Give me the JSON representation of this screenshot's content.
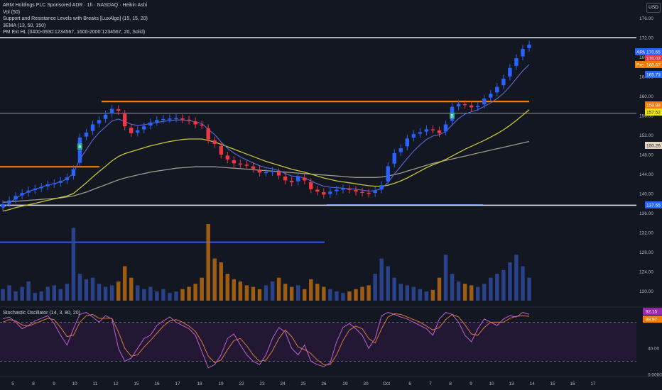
{
  "legend": {
    "title": "ARM Holdings PLC Sponsored ADR · 1h · NASDAQ · Heikin Ashi",
    "vol": "Vol (50)",
    "sr": " Support and Resistance Levels with Breaks [LuxAlgo] (15, 15, 20)",
    "ema": "3EMA (13, 50, 150)",
    "pm": "PM Ext HL (0400-0930:1234567, 1600-2000:1234567, 20, Solid)"
  },
  "currency_button": "USD",
  "oscillator_title": "Stochastic Oscillator (14, 3, 80, 20)",
  "colors": {
    "bg": "#131722",
    "up": "#2962ff",
    "down": "#f23645",
    "ema_fast": "#5b6bd6",
    "ema_mid": "#c9c43a",
    "ema_slow": "#9e9a8c",
    "resistance": "#f57c00",
    "support": "#2f4fd8",
    "pm_line": "#e0e3eb",
    "stoch_k": "#c05fd0",
    "stoch_d": "#d77a3a"
  },
  "chart_data": [
    {
      "type": "candlestick",
      "style": "Heikin Ashi",
      "interval": "1h",
      "symbol": "ARM",
      "x_ticks": [
        "5",
        "8",
        "9",
        "10",
        "11",
        "12",
        "15",
        "16",
        "17",
        "18",
        "19",
        "22",
        "23",
        "24",
        "25",
        "26",
        "29",
        "30",
        "Oct",
        "6",
        "7",
        "8",
        "9",
        "10",
        "13",
        "14",
        "15",
        "16",
        "17"
      ],
      "y_ticks": [
        176.0,
        172.0,
        168.0,
        164.0,
        160.0,
        156.0,
        152.0,
        148.0,
        144.0,
        140.0,
        136.0,
        132.0,
        128.0,
        124.0,
        120.0
      ],
      "ylim": [
        118.0,
        178.0
      ],
      "price_path": [
        137.8,
        138.6,
        139.5,
        140.1,
        140.6,
        141.0,
        141.4,
        141.9,
        142.1,
        142.6,
        143.3,
        145.0,
        151.5,
        152.5,
        154.2,
        155.1,
        156.2,
        157.4,
        157.0,
        153.8,
        152.4,
        153.0,
        153.8,
        154.6,
        155.1,
        155.3,
        155.4,
        155.5,
        155.2,
        155.0,
        154.2,
        154.0,
        151.1,
        150.2,
        148.0,
        147.0,
        146.2,
        146.0,
        145.7,
        145.1,
        144.3,
        144.4,
        144.6,
        143.7,
        142.7,
        142.3,
        143.4,
        142.7,
        140.9,
        140.4,
        139.8,
        140.4,
        140.8,
        141.0,
        140.8,
        140.4,
        140.2,
        140.0,
        140.6,
        141.7,
        145.6,
        148.3,
        149.3,
        151.3,
        152.2,
        152.6,
        153.2,
        153.1,
        152.4,
        154.2,
        157.8,
        158.4,
        158.2,
        157.7,
        158.0,
        159.5,
        160.5,
        161.9,
        163.6,
        165.8,
        167.8,
        169.7,
        170.6
      ],
      "current_price": 170.65,
      "price_tags": [
        {
          "label": "ARM",
          "value": "170.65",
          "color": "#2962ff"
        },
        {
          "label": "",
          "value": "170.02",
          "color": "#f23645"
        },
        {
          "label": "Pre",
          "value": "168.57",
          "color": "#f57c00"
        },
        {
          "label": "",
          "value": "165.73",
          "color": "#2962ff"
        },
        {
          "label": "",
          "value": "158.88",
          "color": "#f57c00"
        },
        {
          "label": "",
          "value": "157.52",
          "color": "#f5e800"
        },
        {
          "label": "",
          "value": "150.26",
          "color": "#e3d7c4"
        },
        {
          "label": "",
          "value": "137.65",
          "color": "#2962ff"
        }
      ],
      "levels": [
        {
          "name": "PM high",
          "value": 172.0,
          "color": "#e0e3eb"
        },
        {
          "name": "Resistance",
          "value": 158.9,
          "color": "#f57c00"
        },
        {
          "name": "Level",
          "value": 156.5,
          "color": "#9598a1"
        },
        {
          "name": "Resistance old",
          "value": 145.5,
          "color": "#f57c00"
        },
        {
          "name": "Support",
          "value": 137.65,
          "color": "#2962ff"
        },
        {
          "name": "PM low",
          "value": 137.6,
          "color": "#e0e3eb"
        },
        {
          "name": "Support old",
          "value": 130.0,
          "color": "#2f4fd8"
        }
      ],
      "ema": {
        "fast_13": [
          137.0,
          138.0,
          139.0,
          139.8,
          140.4,
          140.9,
          141.3,
          141.8,
          142.0,
          142.4,
          143.0,
          144.2,
          147.0,
          149.0,
          151.0,
          152.5,
          153.7,
          154.9,
          155.3,
          154.8,
          154.2,
          154.0,
          154.1,
          154.4,
          154.6,
          154.8,
          155.0,
          155.1,
          155.1,
          155.0,
          154.7,
          154.4,
          153.2,
          152.1,
          150.6,
          149.3,
          148.3,
          147.5,
          146.9,
          146.3,
          145.7,
          145.3,
          145.1,
          144.7,
          144.1,
          143.6,
          143.5,
          143.2,
          142.6,
          142.0,
          141.5,
          141.3,
          141.2,
          141.1,
          141.0,
          140.9,
          140.7,
          140.5,
          140.6,
          141.0,
          142.3,
          144.0,
          145.6,
          147.2,
          148.7,
          150.0,
          151.1,
          151.8,
          152.1,
          152.7,
          154.1,
          155.4,
          156.3,
          156.8,
          157.2,
          157.9,
          158.6,
          159.5,
          160.6,
          162.0,
          163.6,
          165.2,
          166.5
        ],
        "mid_50": [
          136.4,
          136.7,
          137.1,
          137.4,
          137.7,
          138.0,
          138.3,
          138.6,
          138.9,
          139.2,
          139.5,
          140.0,
          141.1,
          142.2,
          143.4,
          144.5,
          145.6,
          146.7,
          147.6,
          148.2,
          148.6,
          149.0,
          149.4,
          149.8,
          150.1,
          150.4,
          150.7,
          150.9,
          151.1,
          151.2,
          151.2,
          151.2,
          150.9,
          150.6,
          150.1,
          149.6,
          149.1,
          148.6,
          148.1,
          147.6,
          147.1,
          146.6,
          146.2,
          145.8,
          145.4,
          145.0,
          144.7,
          144.4,
          144.0,
          143.6,
          143.2,
          142.9,
          142.6,
          142.4,
          142.2,
          142.0,
          141.8,
          141.6,
          141.5,
          141.5,
          141.7,
          142.1,
          142.6,
          143.2,
          143.9,
          144.6,
          145.3,
          145.9,
          146.4,
          147.0,
          147.7,
          148.4,
          149.1,
          149.7,
          150.3,
          150.9,
          151.6,
          152.3,
          153.1,
          154.0,
          155.0,
          156.1,
          157.2
        ],
        "slow_150": [
          138.2,
          138.3,
          138.4,
          138.5,
          138.6,
          138.7,
          138.8,
          138.9,
          139.0,
          139.1,
          139.3,
          139.5,
          139.9,
          140.3,
          140.8,
          141.3,
          141.8,
          142.3,
          142.8,
          143.2,
          143.5,
          143.8,
          144.1,
          144.4,
          144.6,
          144.8,
          145.0,
          145.2,
          145.3,
          145.4,
          145.5,
          145.5,
          145.5,
          145.5,
          145.4,
          145.3,
          145.2,
          145.1,
          145.0,
          144.9,
          144.8,
          144.7,
          144.6,
          144.5,
          144.4,
          144.3,
          144.2,
          144.1,
          144.0,
          143.9,
          143.8,
          143.7,
          143.6,
          143.5,
          143.4,
          143.3,
          143.3,
          143.3,
          143.3,
          143.4,
          143.6,
          143.9,
          144.2,
          144.6,
          145.0,
          145.4,
          145.8,
          146.2,
          146.5,
          146.8,
          147.1,
          147.4,
          147.7,
          148.0,
          148.3,
          148.6,
          148.9,
          149.2,
          149.5,
          149.8,
          150.1,
          150.4,
          150.7
        ]
      },
      "volume_relative": [
        0.15,
        0.2,
        0.12,
        0.18,
        0.25,
        0.1,
        0.12,
        0.18,
        0.2,
        0.15,
        0.22,
        0.95,
        0.35,
        0.28,
        0.3,
        0.22,
        0.18,
        0.2,
        0.25,
        0.45,
        0.3,
        0.2,
        0.15,
        0.18,
        0.12,
        0.15,
        0.1,
        0.12,
        0.15,
        0.18,
        0.22,
        0.3,
        1.0,
        0.55,
        0.5,
        0.35,
        0.28,
        0.25,
        0.2,
        0.18,
        0.15,
        0.2,
        0.25,
        0.3,
        0.22,
        0.18,
        0.2,
        0.15,
        0.28,
        0.22,
        0.18,
        0.15,
        0.12,
        0.1,
        0.12,
        0.15,
        0.18,
        0.2,
        0.35,
        0.55,
        0.45,
        0.3,
        0.22,
        0.2,
        0.18,
        0.15,
        0.12,
        0.14,
        0.3,
        0.6,
        0.35,
        0.25,
        0.22,
        0.2,
        0.18,
        0.22,
        0.3,
        0.35,
        0.4,
        0.5,
        0.6,
        0.45,
        0.3
      ],
      "markers": [
        {
          "label": "B",
          "color": "#26a69a"
        },
        {
          "label": "B",
          "color": "#26a69a"
        }
      ]
    },
    {
      "type": "line",
      "title": "Stochastic Oscillator (14, 3, 80, 20)",
      "y_ticks": [
        92.15,
        88.97,
        40.0,
        0.0
      ],
      "ylim": [
        0,
        100
      ],
      "bands": [
        80,
        20
      ],
      "series": [
        {
          "name": "%K",
          "color": "#c05fd0",
          "values": [
            85,
            88,
            80,
            70,
            75,
            82,
            86,
            90,
            78,
            60,
            45,
            70,
            92,
            95,
            88,
            80,
            90,
            85,
            40,
            20,
            25,
            40,
            55,
            60,
            75,
            82,
            88,
            80,
            75,
            70,
            60,
            35,
            10,
            15,
            30,
            55,
            62,
            45,
            30,
            20,
            15,
            30,
            55,
            72,
            65,
            40,
            30,
            45,
            20,
            15,
            12,
            18,
            50,
            72,
            78,
            70,
            60,
            40,
            55,
            90,
            95,
            92,
            88,
            85,
            80,
            75,
            70,
            60,
            85,
            95,
            92,
            80,
            60,
            50,
            70,
            85,
            80,
            75,
            85,
            90,
            88,
            95,
            92
          ]
        },
        {
          "name": "%D",
          "color": "#d77a3a",
          "values": [
            80,
            84,
            82,
            76,
            74,
            78,
            82,
            86,
            84,
            72,
            58,
            60,
            80,
            90,
            92,
            86,
            86,
            86,
            65,
            40,
            28,
            30,
            42,
            52,
            63,
            74,
            82,
            84,
            80,
            74,
            66,
            50,
            28,
            18,
            22,
            38,
            52,
            55,
            44,
            30,
            20,
            22,
            36,
            55,
            68,
            58,
            42,
            38,
            32,
            22,
            15,
            15,
            30,
            52,
            68,
            74,
            70,
            55,
            48,
            70,
            88,
            93,
            92,
            88,
            84,
            80,
            74,
            68,
            72,
            84,
            92,
            88,
            76,
            62,
            60,
            72,
            80,
            80,
            80,
            86,
            89,
            90,
            89
          ]
        }
      ],
      "last_values": [
        {
          "value": "92.15",
          "color": "#9c27b0"
        },
        {
          "value": "88.97",
          "color": "#f57c00"
        }
      ]
    }
  ]
}
